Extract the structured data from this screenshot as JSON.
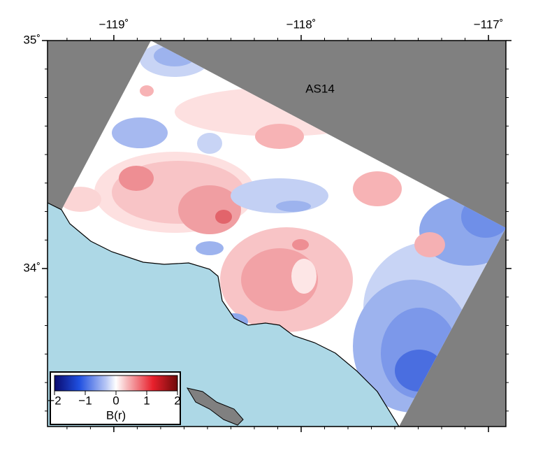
{
  "map": {
    "label": "AS14",
    "xlim": [
      -119.354,
      -116.907
    ],
    "ylim": [
      33.307,
      35
    ],
    "xticks": [
      {
        "value": -119,
        "label": "−119˚"
      },
      {
        "value": -118,
        "label": "−118˚"
      },
      {
        "value": -117,
        "label": "−117˚"
      }
    ],
    "yticks": [
      {
        "value": 34,
        "label": "34˚"
      },
      {
        "value": 35,
        "label": "35˚"
      }
    ],
    "colorbar": {
      "label": "B(r)",
      "lim": [
        -2,
        2
      ],
      "ticks": [
        {
          "value": -2,
          "label": "−2"
        },
        {
          "value": -1,
          "label": "−1"
        },
        0,
        1,
        2
      ]
    }
  }
}
